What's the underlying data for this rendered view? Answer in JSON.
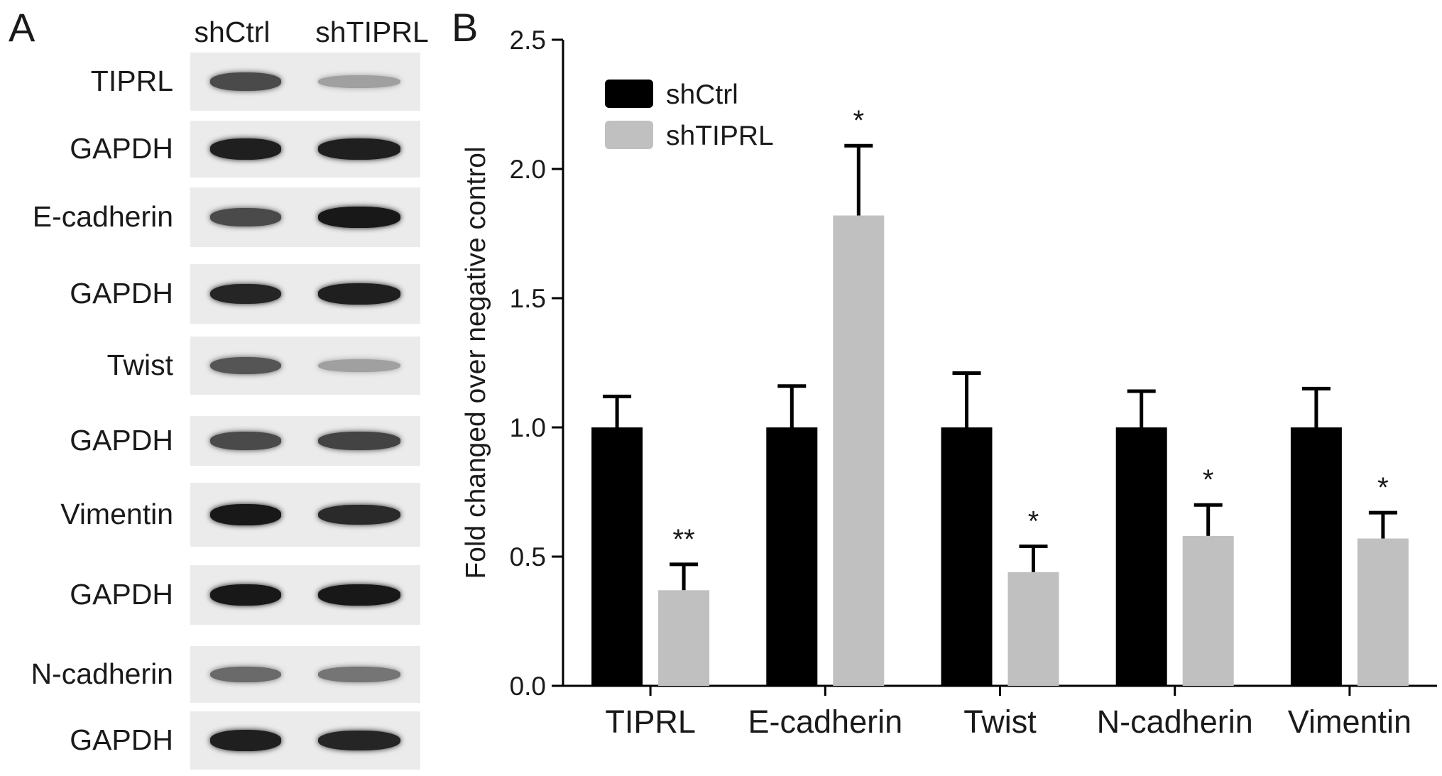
{
  "panel_a": {
    "letter": "A",
    "lanes": [
      "shCtrl",
      "shTIPRL"
    ],
    "blots": [
      {
        "label": "TIPRL",
        "intensity": [
          0.75,
          0.35
        ]
      },
      {
        "label": "GAPDH",
        "intensity": [
          0.95,
          0.95
        ]
      },
      {
        "label": "E-cadherin",
        "intensity": [
          0.75,
          0.98
        ]
      },
      {
        "label": "GAPDH",
        "intensity": [
          0.92,
          0.95
        ]
      },
      {
        "label": "Twist",
        "intensity": [
          0.7,
          0.35
        ]
      },
      {
        "label": "GAPDH",
        "intensity": [
          0.75,
          0.78
        ]
      },
      {
        "label": "Vimentin",
        "intensity": [
          0.98,
          0.9
        ]
      },
      {
        "label": "GAPDH",
        "intensity": [
          0.98,
          0.98
        ]
      },
      {
        "label": "N-cadherin",
        "intensity": [
          0.6,
          0.55
        ]
      },
      {
        "label": "GAPDH",
        "intensity": [
          0.95,
          0.92
        ]
      }
    ]
  },
  "panel_b": {
    "letter": "B"
  },
  "chart_data": {
    "type": "bar",
    "categories": [
      "TIPRL",
      "E-cadherin",
      "Twist",
      "N-cadherin",
      "Vimentin"
    ],
    "series": [
      {
        "name": "shCtrl",
        "color": "#000000",
        "values": [
          1.0,
          1.0,
          1.0,
          1.0,
          1.0
        ],
        "errors": [
          0.12,
          0.16,
          0.21,
          0.14,
          0.15
        ]
      },
      {
        "name": "shTIPRL",
        "color": "#c0c0c0",
        "values": [
          0.37,
          1.82,
          0.44,
          0.58,
          0.57
        ],
        "errors": [
          0.1,
          0.27,
          0.1,
          0.12,
          0.1
        ]
      }
    ],
    "significance": [
      "**",
      "*",
      "*",
      "*",
      "*"
    ],
    "ylabel": "Fold changed over negative control",
    "xlabel": "",
    "ylim": [
      0,
      2.5
    ],
    "yticks": [
      "0.0",
      "0.5",
      "1.0",
      "1.5",
      "2.0",
      "2.5"
    ],
    "legend": "top-left",
    "grid": false
  }
}
